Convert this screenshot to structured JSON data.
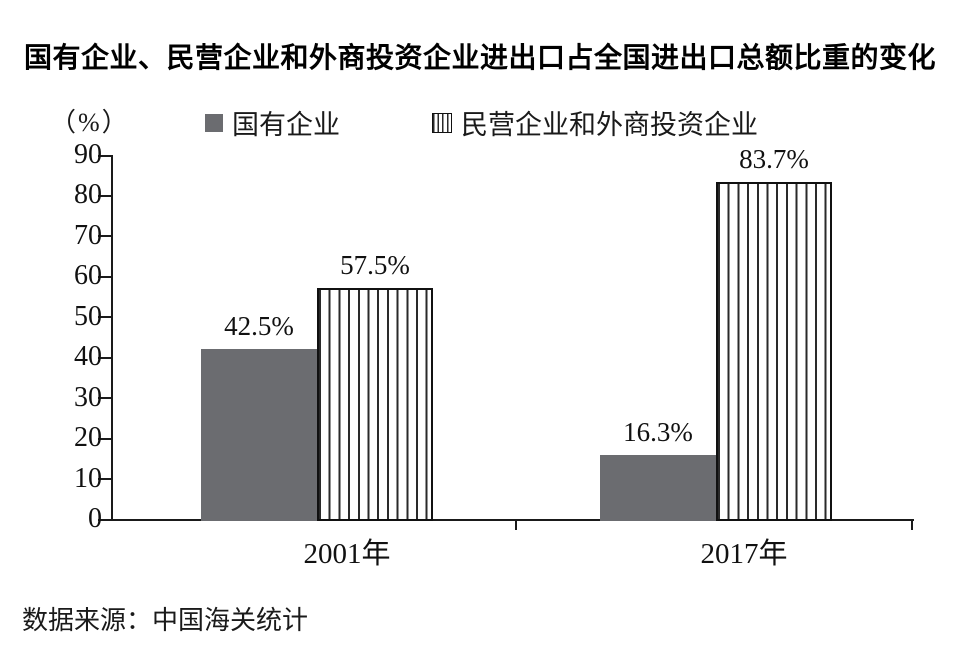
{
  "title": "国有企业、民营企业和外商投资企业进出口占全国进出口总额比重的变化",
  "y_axis_unit": "（%）",
  "legend": [
    {
      "label": "国有企业",
      "swatch": "solid-gray-square",
      "color": "#6b6c70"
    },
    {
      "label": "民营企业和外商投资企业",
      "swatch": "striped-square",
      "color": "#ffffff",
      "stripe_color": "#2a2a2a"
    }
  ],
  "source": "数据来源：中国海关统计",
  "colors": {
    "solid_bar": "#6b6c70",
    "stripe_line": "#2a2a2a",
    "bar_border": "#111111",
    "axis": "#1a1a1a"
  },
  "chart_data": {
    "type": "bar",
    "categories": [
      "2001年",
      "2017年"
    ],
    "series": [
      {
        "name": "国有企业",
        "style": "solid",
        "color": "#6b6c70",
        "values": [
          42.5,
          16.3
        ],
        "labels": [
          "42.5%",
          "16.3%"
        ]
      },
      {
        "name": "民营企业和外商投资企业",
        "style": "striped",
        "color": "#ffffff",
        "stripe_color": "#2a2a2a",
        "values": [
          57.5,
          83.7
        ],
        "labels": [
          "57.5%",
          "83.7%"
        ]
      }
    ],
    "title": "国有企业、民营企业和外商投资企业进出口占全国进出口总额比重的变化",
    "xlabel": "",
    "ylabel": "（%）",
    "ylim": [
      0,
      90
    ],
    "yticks": [
      0,
      10,
      20,
      30,
      40,
      50,
      60,
      70,
      80,
      90
    ],
    "grid": false,
    "legend_position": "top",
    "value_labels_shown": true
  }
}
